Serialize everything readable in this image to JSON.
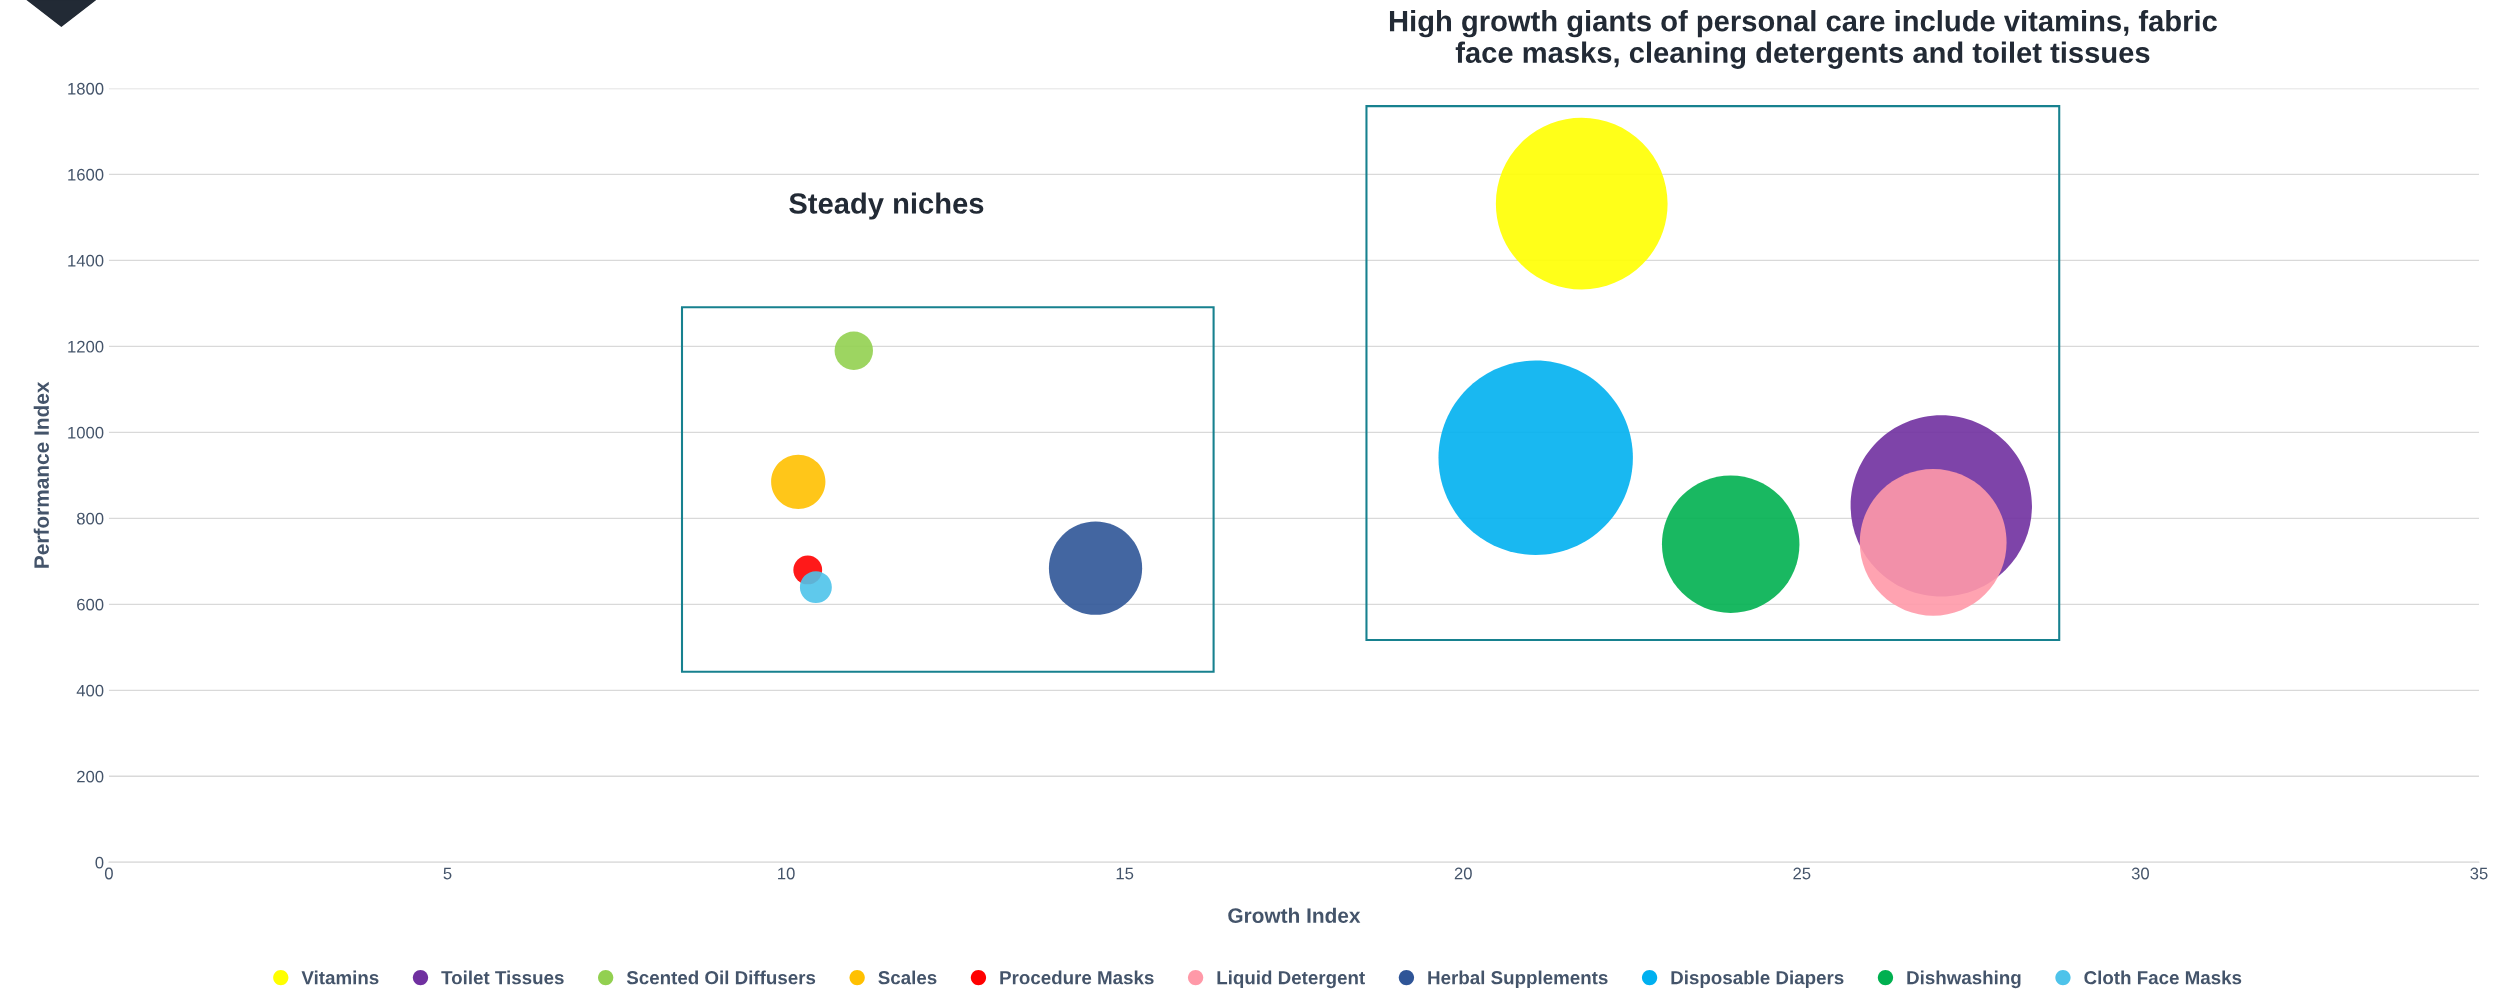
{
  "chart_data": {
    "type": "bubble",
    "xlabel": "Growth Index",
    "ylabel": "Performance Index",
    "xlim": [
      0,
      35
    ],
    "xticks": [
      0,
      5,
      10,
      15,
      20,
      25,
      30,
      35
    ],
    "ylim": [
      0,
      1800
    ],
    "yticks": [
      0,
      200,
      400,
      600,
      800,
      1000,
      1200,
      1400,
      1600,
      1800
    ],
    "grid": "y",
    "legend": "bottom",
    "marker": "circle",
    "series": [
      {
        "name": "Vitamins",
        "color": "#ffff00",
        "x": [
          21.75
        ],
        "values": [
          1532
        ],
        "sizes": [
          0.78
        ]
      },
      {
        "name": "Toilet Tissues",
        "color": "#7030a0",
        "x": [
          27.06
        ],
        "values": [
          829
        ],
        "sizes": [
          0.87
        ]
      },
      {
        "name": "Scented Oil Diffusers",
        "color": "#92d050",
        "x": [
          11.0
        ],
        "values": [
          1190
        ],
        "sizes": [
          0.039
        ]
      },
      {
        "name": "Scales",
        "color": "#ffc000",
        "x": [
          10.18
        ],
        "values": [
          885
        ],
        "sizes": [
          0.078
        ]
      },
      {
        "name": "Procedure Masks",
        "color": "#ff0000",
        "x": [
          10.32
        ],
        "values": [
          680
        ],
        "sizes": [
          0.022
        ]
      },
      {
        "name": "Liquid Detergent",
        "color": "#ff99a8",
        "x": [
          26.94
        ],
        "values": [
          744
        ],
        "sizes": [
          0.57
        ]
      },
      {
        "name": "Herbal Supplements",
        "color": "#2f5597",
        "x": [
          14.57
        ],
        "values": [
          684
        ],
        "sizes": [
          0.23
        ]
      },
      {
        "name": "Disposable Diapers",
        "color": "#00b0f0",
        "x": [
          21.07
        ],
        "values": [
          941
        ],
        "sizes": [
          1
        ]
      },
      {
        "name": "Dishwashing",
        "color": "#00b050",
        "x": [
          23.95
        ],
        "values": [
          740
        ],
        "sizes": [
          0.5
        ]
      },
      {
        "name": "Cloth Face Masks",
        "color": "#4ec3ea",
        "x": [
          10.44
        ],
        "values": [
          640
        ],
        "sizes": [
          0.027
        ]
      }
    ],
    "annotations": [
      "Steady niches",
      "High growth giants of personal care include vitamins, fabric\nface masks, cleaning detergents and toilet tissues"
    ]
  }
}
